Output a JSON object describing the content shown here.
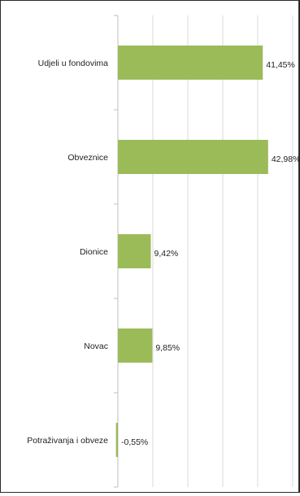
{
  "chart_data": {
    "type": "bar",
    "orientation": "horizontal",
    "categories": [
      "Udjeli u fondovima",
      "Obveznice",
      "Dionice",
      "Novac",
      "Potraživanja i obveze"
    ],
    "values": [
      41.45,
      42.98,
      9.42,
      9.85,
      -0.55
    ],
    "data_labels": [
      "41,45%",
      "42,98%",
      "9,42%",
      "9,85%",
      "-0,55%"
    ],
    "xlim": [
      -1,
      50
    ],
    "grid": true,
    "legend": "none",
    "colors": {
      "bar": "#9BBB59",
      "grid": "#d9d9d9",
      "axis": "#bfbfbf"
    }
  }
}
